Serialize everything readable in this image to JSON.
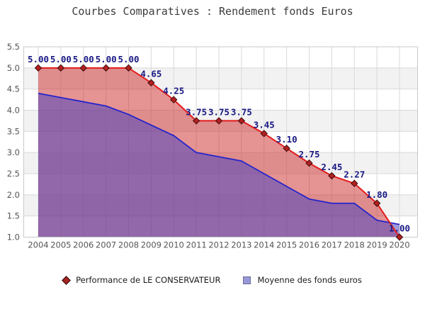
{
  "title": "Courbes Comparatives : Rendement fonds Euros",
  "chart_data": {
    "type": "area",
    "title": "Courbes Comparatives : Rendement fonds Euros",
    "x": [
      2004,
      2005,
      2006,
      2007,
      2008,
      2009,
      2010,
      2011,
      2012,
      2013,
      2014,
      2015,
      2016,
      2017,
      2018,
      2019,
      2020
    ],
    "series": [
      {
        "name": "Performance de LE CONSERVATEUR",
        "kind": "line+area+markers",
        "color": "#e31b1b",
        "marker": "diamond",
        "marker_color": "#b22020",
        "fill": "rgba(200,30,30,0.48)",
        "values": [
          5.0,
          5.0,
          5.0,
          5.0,
          5.0,
          4.65,
          4.25,
          3.75,
          3.75,
          3.75,
          3.45,
          3.1,
          2.75,
          2.45,
          2.27,
          1.8,
          1.0
        ],
        "value_labels": [
          "5.00",
          "5.00",
          "5.00",
          "5.00",
          "5.00",
          "4.65",
          "4.25",
          "3.75",
          "3.75",
          "3.75",
          "3.45",
          "3.10",
          "2.75",
          "2.45",
          "2.27",
          "1.80",
          "1.00"
        ]
      },
      {
        "name": "Moyenne des fonds euros",
        "kind": "line+area",
        "color": "#2424cc",
        "marker": "square",
        "fill": "rgba(80,70,190,0.55)",
        "values": [
          4.4,
          4.3,
          4.2,
          4.1,
          3.9,
          3.65,
          3.4,
          3.0,
          2.9,
          2.8,
          2.5,
          2.2,
          1.9,
          1.8,
          1.8,
          1.4,
          1.3
        ]
      }
    ],
    "ylim": [
      1.0,
      5.5
    ],
    "ytick_step": 0.5,
    "ytick_labels": [
      "5.5",
      "5.0",
      "4.5",
      "4.0",
      "3.5",
      "3.0",
      "2.5",
      "2.0",
      "1.5",
      "1.0"
    ],
    "grid": true,
    "band_colors": [
      "#ffffff",
      "#f2f2f2"
    ],
    "gridline_color": "#d9d9d9",
    "plot_border_color": "#c9c9c9",
    "value_label_color": "#181884",
    "axis_text_color": "#555555",
    "legend_position": "bottom"
  }
}
